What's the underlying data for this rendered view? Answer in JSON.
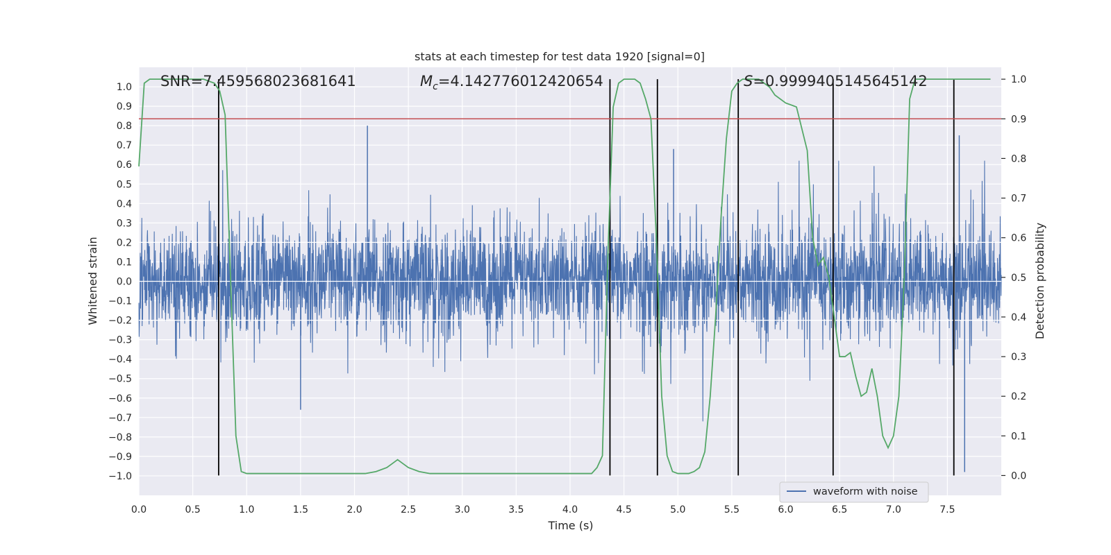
{
  "chart_data": {
    "type": "line",
    "title": "stats at each timestep for test data 1920 [signal=0]",
    "xlabel": "Time (s)",
    "ylabel": "Whitened strain",
    "ylabel_right": "Detection probability",
    "xlim": [
      0.0,
      8.0
    ],
    "ylim": [
      -1.1,
      1.1
    ],
    "ylim_right": [
      -0.05,
      1.03
    ],
    "xticks": [
      "0.0",
      "0.5",
      "1.0",
      "1.5",
      "2.0",
      "2.5",
      "3.0",
      "3.5",
      "4.0",
      "4.5",
      "5.0",
      "5.5",
      "6.0",
      "6.5",
      "7.0",
      "7.5"
    ],
    "xtick_values": [
      0.0,
      0.5,
      1.0,
      1.5,
      2.0,
      2.5,
      3.0,
      3.5,
      4.0,
      4.5,
      5.0,
      5.5,
      6.0,
      6.5,
      7.0,
      7.5
    ],
    "yticks": [
      "1.0",
      "0.9",
      "0.8",
      "0.7",
      "0.6",
      "0.5",
      "0.4",
      "0.3",
      "0.2",
      "0.1",
      "0.0",
      "−0.1",
      "−0.2",
      "−0.3",
      "−0.4",
      "−0.5",
      "−0.6",
      "−0.7",
      "−0.8",
      "−0.9",
      "−1.0"
    ],
    "ytick_values": [
      1.0,
      0.9,
      0.8,
      0.7,
      0.6,
      0.5,
      0.4,
      0.3,
      0.2,
      0.1,
      0.0,
      -0.1,
      -0.2,
      -0.3,
      -0.4,
      -0.5,
      -0.6,
      -0.7,
      -0.8,
      -0.9,
      -1.0
    ],
    "yticks_right": [
      "1.0",
      "0.9",
      "0.8",
      "0.7",
      "0.6",
      "0.5",
      "0.4",
      "0.3",
      "0.2",
      "0.1",
      "0.0"
    ],
    "ytick_values_right": [
      1.0,
      0.9,
      0.8,
      0.7,
      0.6,
      0.5,
      0.4,
      0.3,
      0.2,
      0.1,
      0.0
    ],
    "annotations": {
      "snr": "SNR=7.459568023681641",
      "mc_symbol": "M",
      "mc_sub": "c",
      "mc_value": "=4.142776012420654",
      "s_symbol": "S",
      "s_value": "=0.9999405145645142"
    },
    "series": [
      {
        "name": "waveform with noise",
        "color": "#4c72b0",
        "axis": "left",
        "description": "whitened strain noise time series, roughly symmetric about 0 with amplitude ~±0.3 and spikes up to ~0.8",
        "max_peak": {
          "x": 2.12,
          "y": 0.8
        }
      },
      {
        "name": "detection probability",
        "color": "#55a868",
        "axis": "right",
        "x": [
          0.0,
          0.05,
          0.1,
          0.2,
          0.3,
          0.4,
          0.5,
          0.6,
          0.7,
          0.75,
          0.8,
          0.85,
          0.9,
          0.95,
          1.0,
          1.2,
          1.5,
          2.0,
          2.1,
          2.2,
          2.3,
          2.35,
          2.4,
          2.45,
          2.5,
          2.6,
          2.7,
          2.8,
          3.0,
          3.2,
          3.4,
          3.6,
          3.8,
          4.0,
          4.2,
          4.25,
          4.3,
          4.35,
          4.4,
          4.45,
          4.5,
          4.55,
          4.6,
          4.65,
          4.7,
          4.75,
          4.8,
          4.85,
          4.9,
          4.95,
          5.0,
          5.05,
          5.1,
          5.15,
          5.2,
          5.25,
          5.3,
          5.35,
          5.4,
          5.45,
          5.5,
          5.55,
          5.6,
          5.65,
          5.7,
          5.75,
          5.8,
          5.85,
          5.9,
          6.0,
          6.1,
          6.2,
          6.25,
          6.3,
          6.35,
          6.4,
          6.45,
          6.5,
          6.55,
          6.6,
          6.65,
          6.7,
          6.75,
          6.8,
          6.85,
          6.9,
          6.95,
          7.0,
          7.05,
          7.1,
          7.15,
          7.2,
          7.25,
          7.3,
          7.35,
          7.4,
          7.45,
          7.5,
          7.55,
          7.6,
          7.65,
          7.7,
          7.8,
          7.9
        ],
        "values": [
          0.78,
          0.99,
          1.0,
          1.0,
          1.0,
          1.0,
          1.0,
          1.0,
          0.99,
          0.97,
          0.91,
          0.5,
          0.1,
          0.01,
          0.005,
          0.005,
          0.005,
          0.005,
          0.005,
          0.01,
          0.02,
          0.03,
          0.04,
          0.03,
          0.02,
          0.01,
          0.005,
          0.005,
          0.005,
          0.005,
          0.005,
          0.005,
          0.005,
          0.005,
          0.005,
          0.02,
          0.05,
          0.55,
          0.93,
          0.99,
          1.0,
          1.0,
          1.0,
          0.99,
          0.95,
          0.9,
          0.6,
          0.2,
          0.05,
          0.01,
          0.005,
          0.005,
          0.005,
          0.01,
          0.02,
          0.06,
          0.2,
          0.4,
          0.65,
          0.85,
          0.97,
          0.99,
          1.0,
          1.0,
          1.0,
          1.0,
          0.99,
          0.98,
          0.96,
          0.94,
          0.93,
          0.82,
          0.6,
          0.53,
          0.55,
          0.5,
          0.4,
          0.3,
          0.3,
          0.31,
          0.25,
          0.2,
          0.21,
          0.27,
          0.2,
          0.1,
          0.07,
          0.1,
          0.2,
          0.5,
          0.95,
          1.0,
          1.0,
          1.0,
          1.0,
          1.0,
          1.0,
          1.0,
          1.0,
          1.0,
          1.0,
          1.0,
          1.0,
          1.0
        ]
      }
    ],
    "threshold_line": {
      "y_right": 0.9,
      "color": "#c44e52"
    },
    "vertical_lines_x": [
      0.74,
      4.37,
      4.81,
      5.56,
      6.44,
      7.56
    ],
    "legend": {
      "entries": [
        "waveform with noise"
      ],
      "placement": "lower-right"
    },
    "grid": true
  },
  "colors": {
    "plot_background": "#eaeaf2",
    "grid": "#ffffff",
    "waveform": "#4c72b0",
    "probability": "#55a868",
    "threshold": "#c44e52",
    "vlines": "#000000"
  }
}
